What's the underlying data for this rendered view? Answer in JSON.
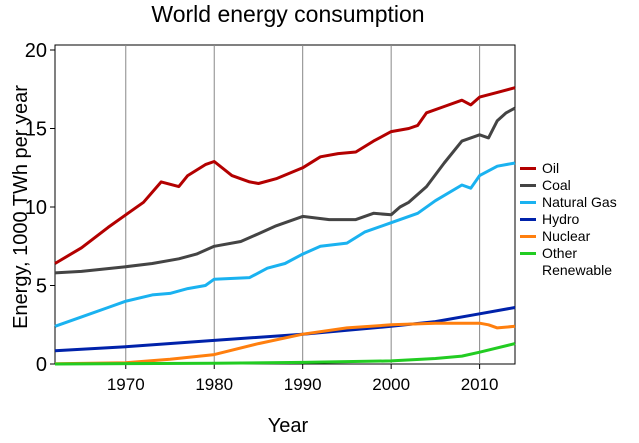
{
  "chart_data": {
    "type": "line",
    "title": "World energy consumption",
    "x_label": "Year",
    "y_label": "Energy, 1000 TWh per year",
    "xlim": [
      1962,
      2014
    ],
    "xticks": [
      1970,
      1980,
      1990,
      2000,
      2010
    ],
    "ylim": [
      0,
      20
    ],
    "yticks": [
      0,
      5,
      10,
      15,
      20
    ],
    "grid": "x",
    "series": [
      {
        "name": "Oil",
        "color": "#b30000",
        "x": [
          1962,
          1965,
          1968,
          1970,
          1972,
          1974,
          1976,
          1977,
          1979,
          1980,
          1982,
          1984,
          1985,
          1987,
          1990,
          1992,
          1994,
          1996,
          1998,
          2000,
          2002,
          2003,
          2004,
          2006,
          2008,
          2009,
          2010,
          2012,
          2014
        ],
        "values": [
          6.4,
          7.4,
          8.7,
          9.5,
          10.3,
          11.6,
          11.3,
          12.0,
          12.7,
          12.9,
          12.0,
          11.6,
          11.5,
          11.8,
          12.5,
          13.2,
          13.4,
          13.5,
          14.2,
          14.8,
          15.0,
          15.2,
          16.0,
          16.4,
          16.8,
          16.5,
          17.0,
          17.3,
          17.6
        ]
      },
      {
        "name": "Coal",
        "color": "#444444",
        "x": [
          1962,
          1965,
          1970,
          1973,
          1976,
          1978,
          1980,
          1983,
          1985,
          1987,
          1990,
          1993,
          1996,
          1998,
          2000,
          2001,
          2002,
          2004,
          2006,
          2008,
          2010,
          2011,
          2012,
          2013,
          2014
        ],
        "values": [
          5.8,
          5.9,
          6.2,
          6.4,
          6.7,
          7.0,
          7.5,
          7.8,
          8.3,
          8.8,
          9.4,
          9.2,
          9.2,
          9.6,
          9.5,
          10.0,
          10.3,
          11.3,
          12.8,
          14.2,
          14.6,
          14.4,
          15.5,
          16.0,
          16.3
        ]
      },
      {
        "name": "Natural Gas",
        "color": "#1ab2f0",
        "x": [
          1962,
          1965,
          1968,
          1970,
          1973,
          1975,
          1977,
          1979,
          1980,
          1984,
          1986,
          1988,
          1990,
          1992,
          1995,
          1997,
          2000,
          2003,
          2005,
          2008,
          2009,
          2010,
          2012,
          2014
        ],
        "values": [
          2.4,
          3.0,
          3.6,
          4.0,
          4.4,
          4.5,
          4.8,
          5.0,
          5.4,
          5.5,
          6.1,
          6.4,
          7.0,
          7.5,
          7.7,
          8.4,
          9.0,
          9.6,
          10.4,
          11.4,
          11.2,
          12.0,
          12.6,
          12.8
        ]
      },
      {
        "name": "Hydro",
        "color": "#0022aa",
        "x": [
          1962,
          1970,
          1980,
          1990,
          2000,
          2005,
          2010,
          2014
        ],
        "values": [
          0.85,
          1.1,
          1.5,
          1.9,
          2.4,
          2.7,
          3.2,
          3.6
        ]
      },
      {
        "name": "Nuclear",
        "color": "#ff7f0e",
        "x": [
          1962,
          1970,
          1975,
          1980,
          1985,
          1990,
          1995,
          2000,
          2005,
          2010,
          2011,
          2012,
          2014
        ],
        "values": [
          0.02,
          0.08,
          0.3,
          0.6,
          1.3,
          1.9,
          2.3,
          2.5,
          2.6,
          2.6,
          2.5,
          2.3,
          2.4
        ]
      },
      {
        "name": "Other Renewable",
        "color": "#22cc22",
        "x": [
          1962,
          1980,
          1990,
          2000,
          2005,
          2008,
          2010,
          2014
        ],
        "values": [
          0,
          0.05,
          0.1,
          0.2,
          0.35,
          0.5,
          0.75,
          1.3
        ]
      }
    ]
  }
}
